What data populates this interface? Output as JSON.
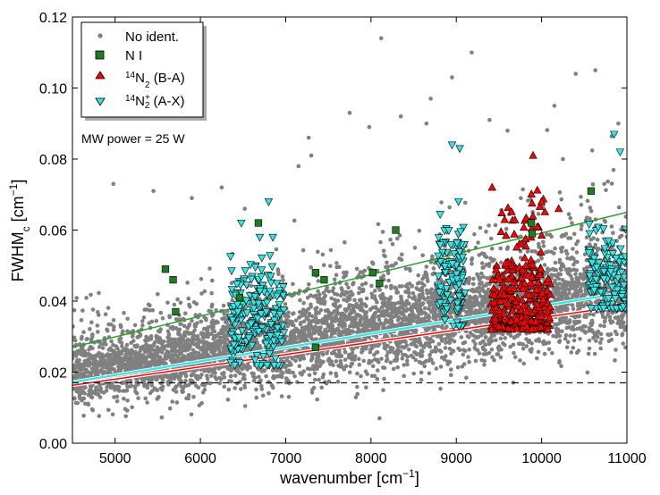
{
  "chart_data": {
    "type": "scatter",
    "title": "",
    "xlabel": {
      "main": "wavenumber [cm",
      "sup": "−1",
      "end": "]"
    },
    "ylabel": {
      "main": "FWHM",
      "sub": "c",
      "mid": " [cm",
      "sup": "−1",
      "end": "]"
    },
    "xlim": [
      4500,
      11000
    ],
    "ylim": [
      0.0,
      0.12
    ],
    "xticks": [
      5000,
      6000,
      7000,
      8000,
      9000,
      10000,
      11000
    ],
    "xtick_labels": [
      "5000",
      "6000",
      "7000",
      "8000",
      "9000",
      "10000",
      "11000"
    ],
    "yticks": [
      0.0,
      0.02,
      0.04,
      0.06,
      0.08,
      0.1,
      0.12
    ],
    "ytick_labels": [
      "0.00",
      "0.02",
      "0.04",
      "0.06",
      "0.08",
      "0.10",
      "0.12"
    ],
    "grid": false,
    "legend_position": "top-left",
    "annotation": "MW power = 25 W",
    "legend": [
      {
        "key": "noident",
        "label": "No ident.",
        "marker": "dot",
        "color": "#808080"
      },
      {
        "key": "ni",
        "label": "N I",
        "marker": "square",
        "color": "#1e7d1e"
      },
      {
        "key": "n2",
        "label_parts": {
          "pre_sup": "14",
          "base": "N",
          "sub": "2",
          "post": " (B-A)"
        },
        "marker": "triangle-up",
        "color": "#ff0000"
      },
      {
        "key": "n2plus",
        "label_parts": {
          "pre_sup": "14",
          "base": "N",
          "sub": "2",
          "sup": "+",
          "post": " (A-X)"
        },
        "marker": "triangle-down",
        "color": "#33e5e5"
      }
    ],
    "series": [
      {
        "name": "No ident.",
        "marker": "dot",
        "color": "#808080",
        "density_note": "dense cloud of thousands of points",
        "trend_lower": {
          "x": [
            4500,
            11000
          ],
          "y": [
            0.012,
            0.03
          ]
        },
        "trend_center": {
          "x": [
            4500,
            11000
          ],
          "y": [
            0.019,
            0.042
          ]
        },
        "trend_upper": {
          "x": [
            4500,
            11000
          ],
          "y": [
            0.034,
            0.064
          ]
        },
        "outliers": [
          {
            "x": 5450,
            "y": 0.071
          },
          {
            "x": 5900,
            "y": 0.069
          },
          {
            "x": 6250,
            "y": 0.072
          },
          {
            "x": 7150,
            "y": 0.078
          },
          {
            "x": 7270,
            "y": 0.086
          },
          {
            "x": 7300,
            "y": 0.081
          },
          {
            "x": 7750,
            "y": 0.093
          },
          {
            "x": 7980,
            "y": 0.089
          },
          {
            "x": 8120,
            "y": 0.114
          },
          {
            "x": 8350,
            "y": 0.092
          },
          {
            "x": 8700,
            "y": 0.097
          },
          {
            "x": 8650,
            "y": 0.09
          },
          {
            "x": 9180,
            "y": 0.11
          },
          {
            "x": 8950,
            "y": 0.103
          },
          {
            "x": 9390,
            "y": 0.091
          },
          {
            "x": 9600,
            "y": 0.088
          },
          {
            "x": 10150,
            "y": 0.095
          },
          {
            "x": 10400,
            "y": 0.104
          },
          {
            "x": 10630,
            "y": 0.105
          },
          {
            "x": 10900,
            "y": 0.09
          },
          {
            "x": 8100,
            "y": 0.007
          },
          {
            "x": 4980,
            "y": 0.073
          },
          {
            "x": 6520,
            "y": 0.066
          },
          {
            "x": 10250,
            "y": 0.08
          }
        ]
      },
      {
        "name": "N I",
        "marker": "square",
        "color": "#1e7d1e",
        "points": [
          {
            "x": 5590,
            "y": 0.049
          },
          {
            "x": 5680,
            "y": 0.046
          },
          {
            "x": 5710,
            "y": 0.037
          },
          {
            "x": 6460,
            "y": 0.041
          },
          {
            "x": 6680,
            "y": 0.062
          },
          {
            "x": 7350,
            "y": 0.048
          },
          {
            "x": 7350,
            "y": 0.027
          },
          {
            "x": 7450,
            "y": 0.046
          },
          {
            "x": 8020,
            "y": 0.048
          },
          {
            "x": 8100,
            "y": 0.045
          },
          {
            "x": 8290,
            "y": 0.06
          },
          {
            "x": 9880,
            "y": 0.062
          },
          {
            "x": 9890,
            "y": 0.059
          },
          {
            "x": 10580,
            "y": 0.071
          }
        ]
      },
      {
        "name": "14N2 (B-A)",
        "marker": "triangle-up",
        "color": "#ff0000",
        "clusters": [
          {
            "x_range": [
              9400,
              10100
            ],
            "y_range": [
              0.032,
              0.05
            ],
            "count": 260
          },
          {
            "x_range": [
              9450,
              10050
            ],
            "y_range": [
              0.05,
              0.072
            ],
            "count": 40
          }
        ],
        "highlights": [
          {
            "x": 9900,
            "y": 0.081
          },
          {
            "x": 9420,
            "y": 0.072
          },
          {
            "x": 10000,
            "y": 0.068
          },
          {
            "x": 10200,
            "y": 0.066
          }
        ]
      },
      {
        "name": "14N2+ (A-X)",
        "marker": "triangle-down",
        "color": "#33e5e5",
        "clusters": [
          {
            "x_range": [
              6350,
              6980
            ],
            "y_range": [
              0.022,
              0.058
            ],
            "count": 200
          },
          {
            "x_range": [
              8780,
              9120
            ],
            "y_range": [
              0.033,
              0.07
            ],
            "count": 110
          },
          {
            "x_range": [
              10550,
              11000
            ],
            "y_range": [
              0.038,
              0.065
            ],
            "count": 120
          }
        ],
        "highlights": [
          {
            "x": 6800,
            "y": 0.068
          },
          {
            "x": 8950,
            "y": 0.084
          },
          {
            "x": 9040,
            "y": 0.083
          },
          {
            "x": 10850,
            "y": 0.087
          },
          {
            "x": 10920,
            "y": 0.082
          },
          {
            "x": 6480,
            "y": 0.062
          }
        ]
      }
    ],
    "fit_lines": [
      {
        "name": "green fit",
        "color": "#2ca02c",
        "x": [
          4500,
          11000
        ],
        "y": [
          0.027,
          0.065
        ]
      },
      {
        "name": "cyan fit",
        "color": "#33e5e5",
        "x": [
          4500,
          11000
        ],
        "y": [
          0.0172,
          0.0425
        ]
      },
      {
        "name": "red fit",
        "color": "#ff0000",
        "x": [
          4500,
          11000
        ],
        "y": [
          0.0163,
          0.0388
        ]
      }
    ],
    "reference_line": {
      "style": "dashed",
      "color": "#000000",
      "y": 0.017
    }
  }
}
